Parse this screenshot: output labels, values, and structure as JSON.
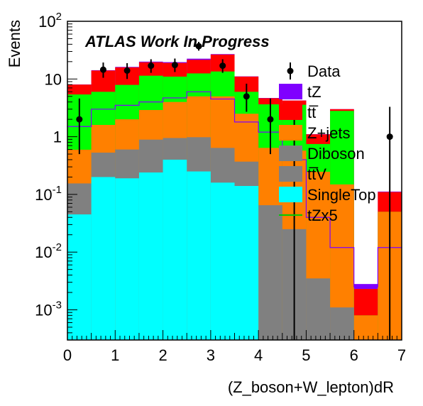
{
  "chart_data": {
    "type": "bar",
    "stacked": true,
    "title": "ATLAS Work In Progress",
    "xlabel": "(Z_boson+W_lepton)dR",
    "ylabel": "Events",
    "x_bin_edges": [
      0,
      0.5,
      1.0,
      1.5,
      2.0,
      2.5,
      3.0,
      3.5,
      4.0,
      4.5,
      5.0,
      5.5,
      6.0,
      6.5,
      7.0
    ],
    "xlim": [
      0,
      7
    ],
    "ylim": [
      0.0003,
      100
    ],
    "y_scale": "log",
    "x_ticks": [
      "0",
      "1",
      "2",
      "3",
      "4",
      "5",
      "6",
      "7"
    ],
    "y_ticks": [
      {
        "value": 0.001,
        "base": "10",
        "exp": "-3"
      },
      {
        "value": 0.01,
        "base": "10",
        "exp": "-2"
      },
      {
        "value": 0.1,
        "base": "10",
        "exp": "-1"
      },
      {
        "value": 1,
        "base": "1",
        "exp": ""
      },
      {
        "value": 10,
        "base": "10",
        "exp": ""
      },
      {
        "value": 100,
        "base": "10",
        "exp": "2"
      }
    ],
    "stack_series": [
      {
        "name": "SingleTop",
        "color": "#00ffff",
        "values": [
          0.045,
          0.2,
          0.19,
          0.24,
          0.4,
          0.25,
          0.16,
          0.14,
          0,
          0,
          0,
          0,
          0,
          0
        ]
      },
      {
        "name": "tt̅V",
        "color": "#808080",
        "values": [
          0.11,
          0.33,
          0.41,
          0.65,
          0.55,
          0.73,
          0.48,
          0.23,
          0.065,
          0.025,
          0.0035,
          0.0011,
          0,
          0
        ]
      },
      {
        "name": "Diboson",
        "color": "#808080",
        "values": 0
      },
      {
        "name": "Z+jets",
        "color": "#ff8000",
        "values": [
          0.44,
          1.07,
          1.4,
          2.01,
          3.05,
          4.02,
          4.36,
          2.13,
          0.575,
          0.55,
          0.2435,
          0.1479,
          0.0008,
          0.05
        ]
      },
      {
        "name": "tt̅",
        "color": "#ff0000",
        "values": [
          2.6,
          8.0,
          8.0,
          8.1,
          8.0,
          9.0,
          13.0,
          5.0,
          1.0,
          0.65,
          0.35,
          0.2,
          0.0015,
          0.06
        ]
      },
      {
        "name": "tZ",
        "color": "#7f00ff",
        "values": [
          0.05,
          0.2,
          0.3,
          0.5,
          0.6,
          1.0,
          0.5,
          0.1,
          0.05,
          0.02,
          0.01,
          0.005,
          0.0005,
          0.002
        ]
      }
    ],
    "green_series": {
      "name": "",
      "color": "#00ff00",
      "values": [
        4.8,
        4.4,
        5.9,
        8.5,
        7.0,
        7.5,
        8.5,
        3.5,
        3.0,
        3.0,
        0.5,
        2.65,
        0,
        0
      ]
    },
    "tzx5": {
      "name": "tZx5",
      "color": "#7f00ff",
      "values": [
        1.5,
        3.0,
        3.5,
        4.0,
        4.7,
        6.0,
        4.5,
        1.8,
        1.2,
        0.4,
        0.04,
        0.012,
        0.0025,
        0.012
      ]
    },
    "data": {
      "name": "Data",
      "x": [
        0.25,
        0.75,
        1.25,
        1.75,
        2.25,
        2.75,
        3.25,
        3.75,
        4.25,
        4.75,
        6.75
      ],
      "y": [
        2.0,
        14.5,
        14.0,
        17.0,
        17.5,
        37.0,
        17.0,
        5.0,
        2.0,
        1.0,
        1.0
      ],
      "err_low": [
        1.5,
        4.0,
        4.0,
        4.2,
        4.3,
        6.0,
        4.2,
        2.3,
        1.5,
        0.9999,
        0.9999
      ],
      "err_high": [
        2.6,
        4.8,
        4.8,
        5.0,
        5.1,
        7.0,
        5.0,
        3.3,
        2.6,
        2.3,
        2.3
      ]
    },
    "legend": {
      "position": "right",
      "entries": [
        {
          "label": "Data",
          "style": "marker",
          "color": "#000000"
        },
        {
          "label": "tZ",
          "style": "box",
          "color": "#7f00ff"
        },
        {
          "label": "tt̅",
          "style": "box",
          "color": "#ff0000"
        },
        {
          "label": "Z+jets",
          "style": "box",
          "color": "#ff8000"
        },
        {
          "label": "Diboson",
          "style": "box",
          "color": "#808080"
        },
        {
          "label": "tt̅V",
          "style": "box",
          "color": "#808080"
        },
        {
          "label": "SingleTop",
          "style": "box",
          "color": "#00ffff"
        },
        {
          "label": "tZx5",
          "style": "line",
          "color": "#00cc00"
        }
      ]
    },
    "grid": false
  }
}
